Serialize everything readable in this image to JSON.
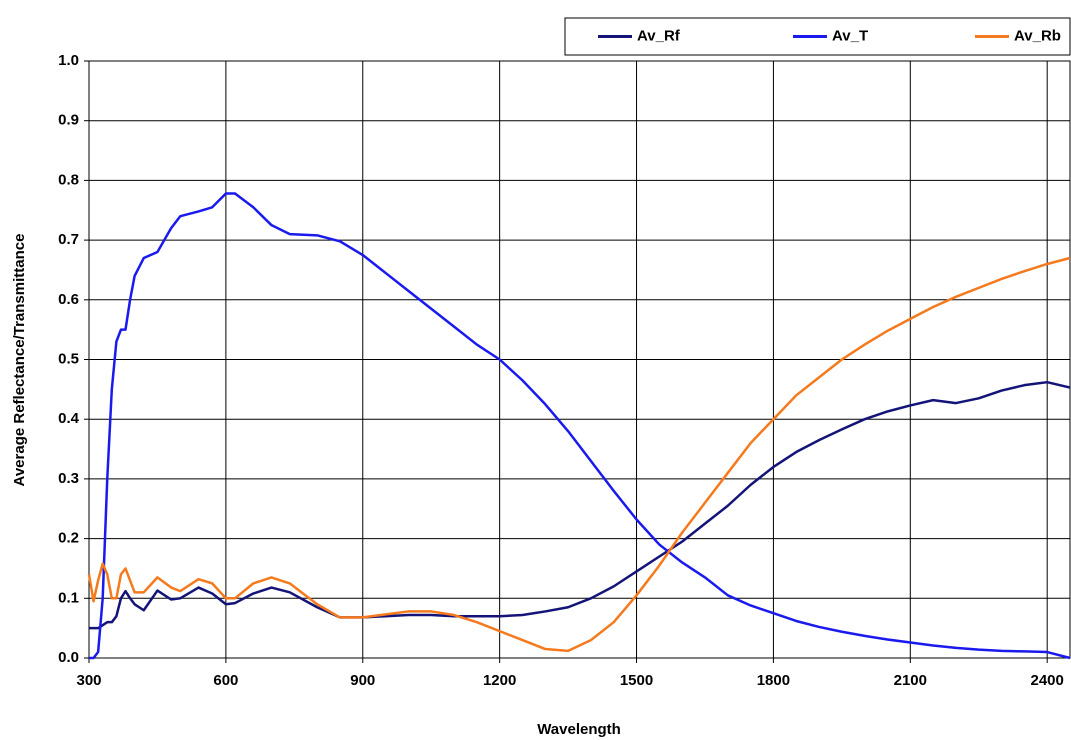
{
  "chart_data": {
    "type": "line",
    "x_label": "Wavelength",
    "y_label": "Average Reflectance/Transmittance",
    "x": [
      300,
      310,
      320,
      330,
      340,
      350,
      360,
      370,
      380,
      390,
      400,
      420,
      450,
      480,
      500,
      540,
      570,
      600,
      620,
      660,
      700,
      740,
      800,
      850,
      900,
      950,
      1000,
      1050,
      1100,
      1150,
      1200,
      1250,
      1300,
      1350,
      1400,
      1450,
      1500,
      1550,
      1600,
      1650,
      1700,
      1750,
      1800,
      1850,
      1900,
      1950,
      2000,
      2050,
      2100,
      2150,
      2200,
      2250,
      2300,
      2350,
      2400,
      2450
    ],
    "series": [
      {
        "name": "Av_Rf",
        "color": "#141478",
        "values": [
          0.05,
          0.05,
          0.05,
          0.055,
          0.06,
          0.06,
          0.07,
          0.1,
          0.112,
          0.1,
          0.09,
          0.08,
          0.113,
          0.098,
          0.1,
          0.118,
          0.108,
          0.09,
          0.092,
          0.108,
          0.118,
          0.11,
          0.085,
          0.068,
          0.068,
          0.07,
          0.072,
          0.072,
          0.07,
          0.07,
          0.07,
          0.072,
          0.078,
          0.085,
          0.1,
          0.12,
          0.145,
          0.17,
          0.195,
          0.225,
          0.255,
          0.29,
          0.32,
          0.345,
          0.365,
          0.383,
          0.4,
          0.413,
          0.423,
          0.432,
          0.427,
          0.435,
          0.448,
          0.457,
          0.462,
          0.453
        ]
      },
      {
        "name": "Av_T",
        "color": "#1a1aee",
        "values": [
          0,
          0,
          0.01,
          0.1,
          0.3,
          0.45,
          0.53,
          0.55,
          0.55,
          0.6,
          0.64,
          0.67,
          0.68,
          0.72,
          0.74,
          0.748,
          0.755,
          0.778,
          0.778,
          0.755,
          0.725,
          0.71,
          0.708,
          0.698,
          0.675,
          0.645,
          0.615,
          0.585,
          0.555,
          0.525,
          0.5,
          0.465,
          0.425,
          0.38,
          0.33,
          0.28,
          0.232,
          0.19,
          0.16,
          0.135,
          0.105,
          0.088,
          0.075,
          0.062,
          0.052,
          0.044,
          0.037,
          0.031,
          0.026,
          0.021,
          0.017,
          0.014,
          0.012,
          0.011,
          0.01,
          0
        ]
      },
      {
        "name": "Av_Rb",
        "color": "#f57a1e",
        "values": [
          0.14,
          0.095,
          0.13,
          0.158,
          0.14,
          0.1,
          0.1,
          0.14,
          0.15,
          0.13,
          0.11,
          0.11,
          0.135,
          0.118,
          0.112,
          0.132,
          0.125,
          0.1,
          0.1,
          0.125,
          0.135,
          0.125,
          0.09,
          0.068,
          0.068,
          0.073,
          0.078,
          0.078,
          0.072,
          0.06,
          0.045,
          0.03,
          0.015,
          0.012,
          0.03,
          0.06,
          0.105,
          0.155,
          0.21,
          0.26,
          0.31,
          0.36,
          0.4,
          0.44,
          0.47,
          0.5,
          0.525,
          0.548,
          0.568,
          0.588,
          0.605,
          0.62,
          0.635,
          0.648,
          0.66,
          0.67
        ]
      }
    ],
    "xlim": [
      300,
      2450
    ],
    "xticks": [
      300,
      600,
      900,
      1200,
      1500,
      1800,
      2100,
      2400
    ],
    "ylim": [
      0,
      1
    ],
    "yticks": [
      {
        "value": 0,
        "label": "0.0"
      },
      0.1,
      0.2,
      0.3,
      0.4,
      0.5,
      0.6,
      0.7,
      0.8,
      0.9,
      {
        "value": 1,
        "label": "1.0"
      }
    ],
    "grid": true,
    "legend": "top-right"
  }
}
